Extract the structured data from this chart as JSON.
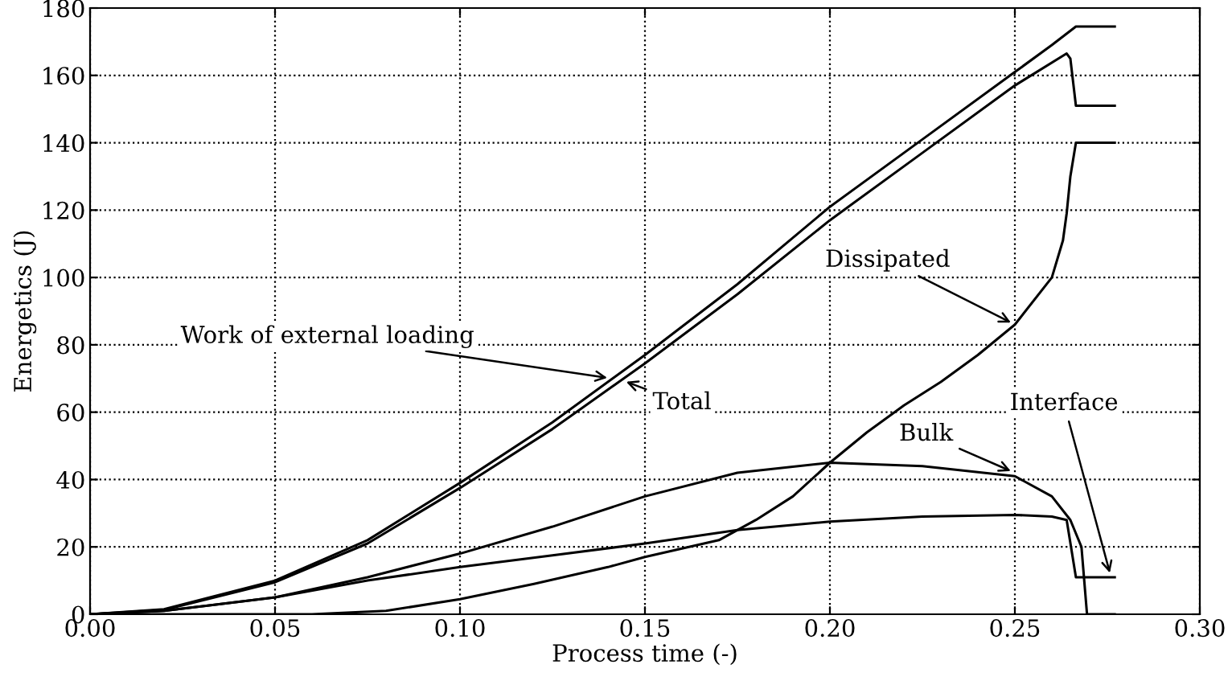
{
  "chart_data": {
    "type": "line",
    "xlabel": "Process time (-)",
    "ylabel": "Energetics (J)",
    "xlim": [
      0,
      0.3
    ],
    "xticks": [
      {
        "value": 0,
        "label": "0.00"
      },
      0.05,
      {
        "value": 0.1,
        "label": "0.10"
      },
      0.15,
      {
        "value": 0.2,
        "label": "0.20"
      },
      0.25,
      {
        "value": 0.3,
        "label": "0.30"
      }
    ],
    "ylim": [
      0,
      180
    ],
    "yticks": [
      0,
      20,
      40,
      60,
      80,
      100,
      120,
      140,
      160,
      180
    ],
    "grid": true,
    "line_style": "solid",
    "series": [
      {
        "color": "#000000",
        "x": [
          0,
          0.02,
          0.05,
          0.075,
          0.1,
          0.125,
          0.15,
          0.175,
          0.2,
          0.225,
          0.25,
          0.26,
          0.2665,
          0.277
        ],
        "values": [
          0,
          1.5,
          10,
          22,
          39,
          57,
          77,
          98,
          121,
          141,
          161,
          169,
          174.5,
          174.5
        ]
      },
      {
        "color": "#000000",
        "x": [
          0,
          0.02,
          0.05,
          0.075,
          0.1,
          0.125,
          0.15,
          0.175,
          0.2,
          0.225,
          0.25,
          0.264,
          0.265,
          0.2665,
          0.277
        ],
        "values": [
          0,
          1.3,
          9.5,
          21,
          37.5,
          55,
          74.5,
          95,
          117,
          137,
          157,
          166.5,
          165,
          151,
          151
        ]
      },
      {
        "color": "#000000",
        "x": [
          0,
          0.06,
          0.08,
          0.1,
          0.12,
          0.14,
          0.15,
          0.17,
          0.18,
          0.19,
          0.2,
          0.21,
          0.22,
          0.23,
          0.24,
          0.25,
          0.26,
          0.263,
          0.264,
          0.265,
          0.2665,
          0.277
        ],
        "values": [
          0,
          0,
          1,
          4.5,
          9,
          14,
          17,
          22,
          28,
          35,
          45,
          54,
          62,
          69,
          77,
          86,
          100,
          111,
          119,
          130,
          140,
          140
        ]
      },
      {
        "color": "#000000",
        "x": [
          0,
          0.02,
          0.05,
          0.075,
          0.1,
          0.125,
          0.15,
          0.175,
          0.2,
          0.225,
          0.25,
          0.26,
          0.265,
          0.268,
          0.2695,
          0.277
        ],
        "values": [
          0,
          1,
          5,
          11,
          18,
          26,
          35,
          42,
          45,
          44,
          41,
          35,
          28,
          20,
          0,
          0
        ]
      },
      {
        "color": "#000000",
        "x": [
          0,
          0.02,
          0.05,
          0.075,
          0.1,
          0.125,
          0.15,
          0.175,
          0.2,
          0.225,
          0.25,
          0.26,
          0.264,
          0.2665,
          0.277
        ],
        "values": [
          0,
          1,
          5,
          10,
          14,
          17.5,
          21,
          25,
          27.5,
          29,
          29.5,
          29,
          28,
          11,
          11
        ]
      }
    ],
    "annotations": [
      {
        "text": "Work of external loading",
        "x": 0.141,
        "y": 70
      },
      {
        "text": "Total",
        "x": 0.1438,
        "y": 69.5
      },
      {
        "text": "Dissipated",
        "x": 0.25,
        "y": 86
      },
      {
        "text": "Bulk",
        "x": 0.25,
        "y": 42
      },
      {
        "text": "Interface",
        "x": 0.276,
        "y": 11
      }
    ]
  }
}
